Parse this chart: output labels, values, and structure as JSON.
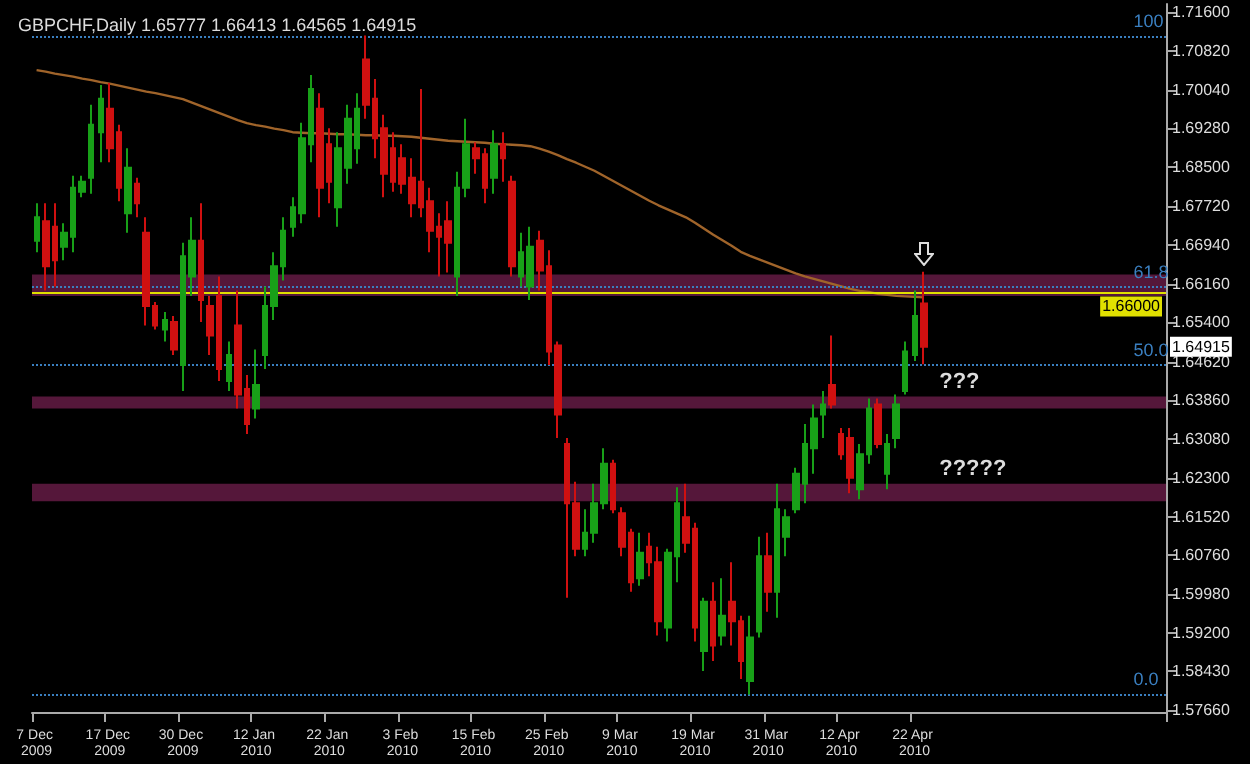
{
  "chart_data": {
    "type": "candlestick",
    "title": "GBPCHF,Daily 1.65777 1.66413 1.64565 1.64915",
    "categories": [
      "7 Dec 2009",
      null,
      null,
      null,
      null,
      null,
      null,
      null,
      "17 Dec 2009",
      null,
      null,
      null,
      null,
      null,
      null,
      null,
      "30 Dec 2009",
      null,
      null,
      null,
      null,
      null,
      null,
      null,
      "12 Jan 2010",
      null,
      null,
      null,
      null,
      null,
      null,
      null,
      "22 Jan 2010",
      null,
      null,
      null,
      null,
      null,
      null,
      null,
      "3 Feb 2010",
      null,
      null,
      null,
      null,
      null,
      null,
      null,
      "15 Feb 2010",
      null,
      null,
      null,
      null,
      null,
      null,
      null,
      "25 Feb 2010",
      null,
      null,
      null,
      null,
      null,
      null,
      null,
      "9 Mar 2010",
      null,
      null,
      null,
      null,
      null,
      null,
      null,
      "19 Mar 2010",
      null,
      null,
      null,
      null,
      null,
      null,
      null,
      "31 Mar 2010",
      null,
      null,
      null,
      null,
      null,
      null,
      null,
      "12 Apr 2010",
      null,
      null,
      null,
      null,
      null,
      null,
      null,
      "22 Apr 2010",
      null
    ],
    "series": [
      {
        "colors": [
          "#18a018",
          "#d01010",
          "#d01010",
          "#18a018",
          "#18a018",
          "#18a018",
          "#18a018",
          "#18a018",
          "#d01010",
          "#d01010",
          "#18a018",
          "#d01010",
          "#d01010",
          "#d01010",
          "#18a018",
          "#d01010",
          "#18a018",
          "#18a018",
          "#d01010",
          "#d01010",
          "#d01010",
          "#18a018",
          "#d01010",
          "#d01010",
          "#18a018",
          "#18a018",
          "#18a018",
          "#18a018",
          "#18a018",
          "#18a018",
          "#18a018",
          "#d01010",
          "#d01010",
          "#18a018",
          "#18a018",
          "#18a018",
          "#d01010",
          "#d01010",
          "#d01010",
          "#d01010",
          "#d01010",
          "#d01010",
          "#d01010",
          "#d01010",
          "#d01010",
          "#d01010",
          "#18a018",
          "#18a018",
          "#d01010",
          "#d01010",
          "#18a018",
          "#d01010",
          "#d01010",
          "#18a018",
          "#18a018",
          "#d01010",
          "#d01010",
          "#d01010",
          "#d01010",
          "#d01010",
          "#18a018",
          "#18a018",
          "#18a018",
          "#d01010",
          "#d01010",
          "#d01010",
          "#18a018",
          "#d01010",
          "#d01010",
          "#18a018",
          "#18a018",
          "#d01010",
          "#d01010",
          "#18a018",
          "#d01010",
          "#18a018",
          "#d01010",
          "#d01010",
          "#18a018",
          "#18a018",
          "#d01010",
          "#18a018",
          "#18a018",
          "#18a018",
          "#18a018",
          "#18a018",
          "#18a018",
          "#d01010",
          "#d01010",
          "#d01010",
          "#18a018",
          "#18a018",
          "#d01010",
          "#18a018",
          "#18a018",
          "#18a018",
          "#18a018",
          "#d01010"
        ],
        "ohlc": [
          [
            1.6703,
            1.6778,
            1.668,
            1.675
          ],
          [
            1.6742,
            1.6778,
            1.6604,
            1.6652
          ],
          [
            1.6731,
            1.6778,
            1.6612,
            1.6664
          ],
          [
            1.6691,
            1.6738,
            1.6664,
            1.6719
          ],
          [
            1.6711,
            1.6833,
            1.668,
            1.6809
          ],
          [
            1.6801,
            1.6833,
            1.679,
            1.6821
          ],
          [
            1.6829,
            1.6975,
            1.6797,
            1.6935
          ],
          [
            1.692,
            1.7014,
            1.686,
            1.6987
          ],
          [
            1.6967,
            1.7018,
            1.686,
            1.6888
          ],
          [
            1.692,
            1.6935,
            1.6782,
            1.6809
          ],
          [
            1.6758,
            1.6888,
            1.6719,
            1.6849
          ],
          [
            1.6817,
            1.6829,
            1.675,
            1.6778
          ],
          [
            1.6719,
            1.675,
            1.6534,
            1.6573
          ],
          [
            1.6573,
            1.6581,
            1.6526,
            1.6534
          ],
          [
            1.6526,
            1.6561,
            1.6502,
            1.6545
          ],
          [
            1.6541,
            1.6553,
            1.6475,
            1.6486
          ],
          [
            1.6455,
            1.6699,
            1.6403,
            1.6672
          ],
          [
            1.6632,
            1.675,
            1.6593,
            1.6703
          ],
          [
            1.6703,
            1.6778,
            1.6541,
            1.6585
          ],
          [
            1.6573,
            1.6593,
            1.6475,
            1.6514
          ],
          [
            1.6593,
            1.6632,
            1.6423,
            1.6447
          ],
          [
            1.6423,
            1.6502,
            1.6403,
            1.6475
          ],
          [
            1.6534,
            1.6604,
            1.6368,
            1.6396
          ],
          [
            1.6407,
            1.6435,
            1.6317,
            1.6337
          ],
          [
            1.6368,
            1.6486,
            1.6348,
            1.6415
          ],
          [
            1.6475,
            1.6612,
            1.6447,
            1.6573
          ],
          [
            1.6573,
            1.668,
            1.6545,
            1.6652
          ],
          [
            1.6652,
            1.675,
            1.6624,
            1.6723
          ],
          [
            1.6731,
            1.679,
            1.6711,
            1.677
          ],
          [
            1.6758,
            1.6939,
            1.6738,
            1.6908
          ],
          [
            1.6896,
            1.7034,
            1.686,
            1.7006
          ],
          [
            1.6967,
            1.6998,
            1.675,
            1.6809
          ],
          [
            1.6896,
            1.6928,
            1.6778,
            1.6821
          ],
          [
            1.677,
            1.692,
            1.6731,
            1.6888
          ],
          [
            1.6849,
            1.6975,
            1.6817,
            1.6947
          ],
          [
            1.6888,
            1.6998,
            1.6857,
            1.6967
          ],
          [
            1.7065,
            1.7113,
            1.6947,
            1.6975
          ],
          [
            1.6987,
            1.7026,
            1.6868,
            1.6908
          ],
          [
            1.6928,
            1.6955,
            1.679,
            1.6837
          ],
          [
            1.6888,
            1.692,
            1.6801,
            1.6821
          ],
          [
            1.6868,
            1.6896,
            1.6797,
            1.6817
          ],
          [
            1.6829,
            1.6868,
            1.675,
            1.6778
          ],
          [
            1.6821,
            1.7006,
            1.675,
            1.677
          ],
          [
            1.6782,
            1.6809,
            1.668,
            1.6723
          ],
          [
            1.6731,
            1.6758,
            1.6632,
            1.6711
          ],
          [
            1.6742,
            1.6782,
            1.664,
            1.6699
          ],
          [
            1.6632,
            1.6841,
            1.6593,
            1.6809
          ],
          [
            1.6809,
            1.6947,
            1.679,
            1.6896
          ],
          [
            1.6888,
            1.69,
            1.6837,
            1.6868
          ],
          [
            1.6876,
            1.6888,
            1.6778,
            1.6809
          ],
          [
            1.6829,
            1.6924,
            1.6797,
            1.6896
          ],
          [
            1.6896,
            1.692,
            1.6821,
            1.6868
          ],
          [
            1.6821,
            1.6833,
            1.6632,
            1.6652
          ],
          [
            1.6632,
            1.6719,
            1.6612,
            1.668
          ],
          [
            1.6612,
            1.6731,
            1.6585,
            1.6691
          ],
          [
            1.6703,
            1.6723,
            1.6604,
            1.6644
          ],
          [
            1.6652,
            1.6684,
            1.6455,
            1.6482
          ],
          [
            1.6494,
            1.6502,
            1.6309,
            1.6356
          ],
          [
            1.6297,
            1.6309,
            1.599,
            1.6179
          ],
          [
            1.6179,
            1.6222,
            1.6073,
            1.6088
          ],
          [
            1.6088,
            1.6167,
            1.6073,
            1.612
          ],
          [
            1.612,
            1.6218,
            1.61,
            1.6179
          ],
          [
            1.6179,
            1.6289,
            1.6167,
            1.6258
          ],
          [
            1.6258,
            1.6266,
            1.6159,
            1.6167
          ],
          [
            1.6159,
            1.6171,
            1.6073,
            1.6092
          ],
          [
            1.612,
            1.6128,
            1.6002,
            1.6021
          ],
          [
            1.6029,
            1.612,
            1.6014,
            1.608
          ],
          [
            1.6092,
            1.612,
            1.6033,
            1.6061
          ],
          [
            1.6061,
            1.6092,
            1.5915,
            1.5943
          ],
          [
            1.5931,
            1.6088,
            1.5903,
            1.608
          ],
          [
            1.6073,
            1.6211,
            1.6021,
            1.6179
          ],
          [
            1.6151,
            1.6218,
            1.608,
            1.61
          ],
          [
            1.6128,
            1.614,
            1.5903,
            1.5931
          ],
          [
            1.5884,
            1.599,
            1.5844,
            1.5982
          ],
          [
            1.5982,
            1.6021,
            1.5864,
            1.5895
          ],
          [
            1.5915,
            1.6029,
            1.5895,
            1.5954
          ],
          [
            1.5982,
            1.6061,
            1.5895,
            1.5943
          ],
          [
            1.5943,
            1.5954,
            1.5828,
            1.5864
          ],
          [
            1.5824,
            1.5954,
            1.5797,
            1.5911
          ],
          [
            1.5923,
            1.6112,
            1.5911,
            1.6073
          ],
          [
            1.6073,
            1.612,
            1.5962,
            1.6002
          ],
          [
            1.6002,
            1.6218,
            1.595,
            1.6167
          ],
          [
            1.6112,
            1.6167,
            1.6073,
            1.6151
          ],
          [
            1.6167,
            1.625,
            1.6159,
            1.6238
          ],
          [
            1.6218,
            1.6337,
            1.6179,
            1.6297
          ],
          [
            1.6289,
            1.6376,
            1.6238,
            1.6348
          ],
          [
            1.6356,
            1.6403,
            1.6309,
            1.6376
          ],
          [
            1.6415,
            1.6514,
            1.6368,
            1.6376
          ],
          [
            1.6317,
            1.6329,
            1.6266,
            1.6277
          ],
          [
            1.6309,
            1.6329,
            1.6199,
            1.623
          ],
          [
            1.6207,
            1.6297,
            1.6187,
            1.6277
          ],
          [
            1.6277,
            1.6388,
            1.6258,
            1.6368
          ],
          [
            1.6376,
            1.6388,
            1.6289,
            1.6297
          ],
          [
            1.6238,
            1.6317,
            1.6207,
            1.6297
          ],
          [
            1.6309,
            1.6396,
            1.6289,
            1.6376
          ],
          [
            1.6403,
            1.6502,
            1.6396,
            1.6482
          ],
          [
            1.6475,
            1.6604,
            1.6463,
            1.6553
          ],
          [
            1.65777,
            1.66413,
            1.64565,
            1.64915
          ]
        ]
      },
      {
        "type": "line",
        "color": "#a0642a",
        "values": [
          1.7044,
          1.7041,
          1.7037,
          1.7034,
          1.7031,
          1.7027,
          1.7024,
          1.702,
          1.7017,
          1.7013,
          1.7009,
          1.7005,
          1.7001,
          1.6998,
          1.6994,
          1.699,
          1.6986,
          1.6979,
          1.6972,
          1.6965,
          1.6958,
          1.6951,
          1.6944,
          1.6938,
          1.6934,
          1.6931,
          1.6927,
          1.6924,
          1.692,
          1.6919,
          1.6918,
          1.6918,
          1.6917,
          1.6916,
          1.6916,
          1.6915,
          1.6914,
          1.6914,
          1.6913,
          1.6913,
          1.6912,
          1.6911,
          1.6909,
          1.6907,
          1.6905,
          1.6903,
          1.6902,
          1.6901,
          1.69,
          1.6899,
          1.6897,
          1.6896,
          1.6895,
          1.6894,
          1.6892,
          1.6887,
          1.6881,
          1.6874,
          1.6866,
          1.6859,
          1.6851,
          1.6843,
          1.6833,
          1.6823,
          1.6813,
          1.6803,
          1.6793,
          1.6783,
          1.6774,
          1.6766,
          1.6758,
          1.675,
          1.6739,
          1.6727,
          1.6715,
          1.6704,
          1.6693,
          1.6681,
          1.6673,
          1.6666,
          1.6659,
          1.6652,
          1.6645,
          1.6638,
          1.6632,
          1.6627,
          1.6622,
          1.6617,
          1.6612,
          1.6607,
          1.6603,
          1.6601,
          1.6597,
          1.6595,
          1.6593,
          1.6592,
          1.6591,
          1.659
        ]
      }
    ],
    "ylim": [
      1.5762,
      1.7176
    ],
    "yticks": [
      {
        "value": 1.716,
        "label": "1.71600"
      },
      {
        "value": 1.7082,
        "label": "1.70820"
      },
      {
        "value": 1.7004,
        "label": "1.70040"
      },
      {
        "value": 1.6928,
        "label": "1.69280"
      },
      {
        "value": 1.685,
        "label": "1.68500"
      },
      {
        "value": 1.6772,
        "label": "1.67720"
      },
      {
        "value": 1.6694,
        "label": "1.66940"
      },
      {
        "value": 1.6616,
        "label": "1.66160"
      },
      {
        "value": 1.654,
        "label": "1.65400"
      },
      {
        "value": 1.6462,
        "label": "1.64620"
      },
      {
        "value": 1.6386,
        "label": "1.63860"
      },
      {
        "value": 1.6308,
        "label": "1.63080"
      },
      {
        "value": 1.623,
        "label": "1.62300"
      },
      {
        "value": 1.6152,
        "label": "1.61520"
      },
      {
        "value": 1.6076,
        "label": "1.60760"
      },
      {
        "value": 1.5998,
        "label": "1.59980"
      },
      {
        "value": 1.592,
        "label": "1.59200"
      },
      {
        "value": 1.5843,
        "label": "1.58430"
      },
      {
        "value": 1.5766,
        "label": "1.57660"
      }
    ],
    "ref_lines": [
      {
        "axis": "y",
        "value": 1.7113,
        "color": "#3a7fc0",
        "line_style": "dotted"
      },
      {
        "axis": "y",
        "value": 1.661,
        "color": "#3a7fc0",
        "line_style": "dotted"
      },
      {
        "axis": "y",
        "value": 1.6455,
        "color": "#3a7fc0",
        "line_style": "dotted"
      },
      {
        "axis": "y",
        "value": 1.5797,
        "color": "#3a7fc0",
        "line_style": "dotted"
      },
      {
        "axis": "y",
        "value": 1.66,
        "label": "1.66000",
        "color": "#e0e000",
        "line_style": "solid"
      }
    ],
    "bands": [
      {
        "axis": "y",
        "from": 1.6593,
        "to": 1.6636,
        "color": "#9a2a6a"
      },
      {
        "axis": "y",
        "from": 1.6368,
        "to": 1.6392,
        "label": "???",
        "color": "#9a2a6a"
      },
      {
        "axis": "y",
        "from": 1.6183,
        "to": 1.6218,
        "label": "?????",
        "color": "#9a2a6a"
      }
    ],
    "annotations": [
      {
        "text": "100",
        "y": 1.7113
      },
      {
        "text": "61.8",
        "y": 1.661
      },
      {
        "text": "50.0",
        "y": 1.6455
      },
      {
        "text": "0.0",
        "y": 1.5797
      },
      "1.64915"
    ],
    "grid": false
  }
}
